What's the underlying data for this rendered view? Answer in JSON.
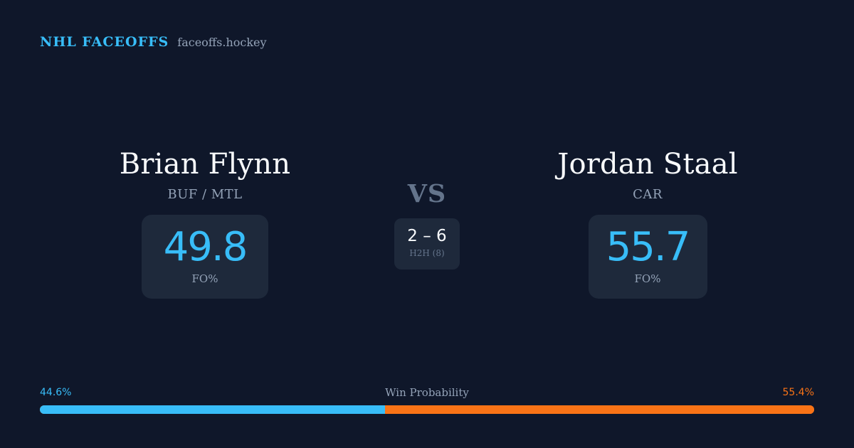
{
  "brand": {
    "name": "NHL FACEOFFS",
    "site": "faceoffs.hockey"
  },
  "player_left": {
    "name": "Brian Flynn",
    "team": "BUF / MTL",
    "fo_pct": "49.8",
    "fo_label": "FO%"
  },
  "player_right": {
    "name": "Jordan Staal",
    "team": "CAR",
    "fo_pct": "55.7",
    "fo_label": "FO%"
  },
  "versus": {
    "label": "VS",
    "h2h_score": "2 – 6",
    "h2h_label": "H2H (8)"
  },
  "win_probability": {
    "title": "Win Probability",
    "left_label": "44.6%",
    "right_label": "55.4%",
    "left_value": 44.6,
    "right_value": 55.4,
    "left_color": "#38bdf8",
    "right_color": "#f97316"
  },
  "colors": {
    "background": "#0f172a",
    "card": "#1e293b",
    "accent": "#38bdf8",
    "muted": "#94a3b8"
  }
}
